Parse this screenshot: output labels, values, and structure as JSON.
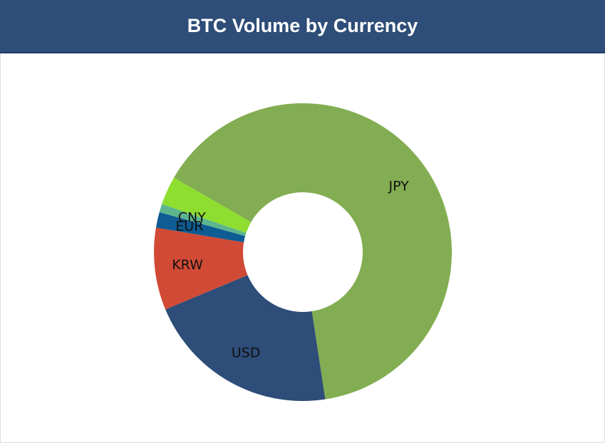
{
  "chart_data": {
    "type": "donut",
    "title": "BTC Volume by Currency",
    "categories": [
      "JPY",
      "USD",
      "KRW",
      "EUR",
      "CNY",
      null
    ],
    "values": [
      64.2,
      21.1,
      8.9,
      1.7,
      0.9,
      3.1
    ],
    "colors": [
      "#82ad52",
      "#2e4d78",
      "#d14a36",
      "#0d5c94",
      "#5cb58e",
      "#8ede2f"
    ]
  }
}
